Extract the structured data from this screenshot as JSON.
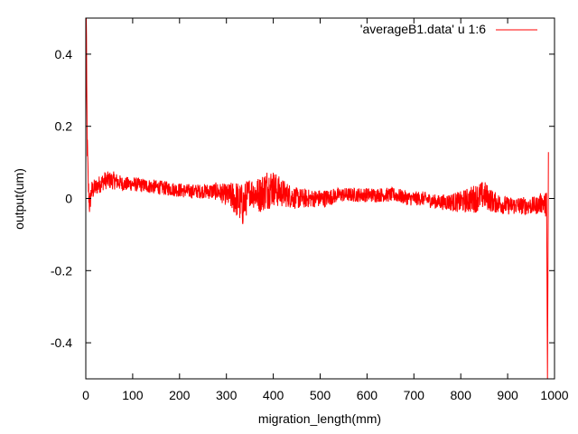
{
  "chart_data": {
    "type": "line",
    "title": "",
    "xlabel": "migration_length(mm)",
    "ylabel": "output(um)",
    "xlim": [
      0,
      1000
    ],
    "ylim": [
      -0.5,
      0.5
    ],
    "xticks": [
      0,
      100,
      200,
      300,
      400,
      500,
      600,
      700,
      800,
      900,
      1000
    ],
    "xtick_labels": [
      "0",
      "100",
      "200",
      "300",
      "400",
      "500",
      "600",
      "700",
      "800",
      "900",
      "1000"
    ],
    "yticks": [
      -0.4,
      -0.2,
      0,
      0.2,
      0.4
    ],
    "ytick_labels": [
      "-0.4",
      "-0.2",
      "0",
      "0.2",
      "0.4"
    ],
    "grid": false,
    "legend": "top-right",
    "series": [
      {
        "name": "'averageB1.data' u 1:6",
        "color": "#ff0000",
        "description_points": {
          "x": [
            0,
            1,
            2,
            3,
            4,
            5,
            8,
            12,
            20,
            40,
            60,
            80,
            100,
            130,
            160,
            190,
            220,
            250,
            280,
            300,
            320,
            335,
            350,
            370,
            390,
            400,
            410,
            430,
            450,
            480,
            510,
            540,
            570,
            600,
            630,
            660,
            690,
            720,
            750,
            780,
            800,
            830,
            850,
            870,
            900,
            930,
            960,
            975,
            980,
            983,
            985,
            987
          ],
          "y": [
            0.2,
            0.5,
            0.3,
            0.15,
            0.1,
            0.04,
            -0.02,
            0.02,
            0.03,
            0.05,
            0.05,
            0.04,
            0.04,
            0.035,
            0.03,
            0.025,
            0.02,
            0.02,
            0.02,
            0.01,
            0.0,
            -0.02,
            0.02,
            0.01,
            0.03,
            0.03,
            0.02,
            0.01,
            0.0,
            0.0,
            0.0,
            0.01,
            0.01,
            0.01,
            0.01,
            0.01,
            0.0,
            0.0,
            -0.01,
            -0.01,
            -0.01,
            0.0,
            0.01,
            -0.01,
            -0.02,
            -0.02,
            -0.02,
            -0.01,
            -0.02,
            0.0,
            -0.5,
            0.1
          ],
          "amplitude": [
            0.05,
            0.05,
            0.05,
            0.05,
            0.05,
            0.04,
            0.03,
            0.03,
            0.025,
            0.025,
            0.025,
            0.02,
            0.02,
            0.02,
            0.02,
            0.02,
            0.02,
            0.02,
            0.025,
            0.03,
            0.05,
            0.06,
            0.04,
            0.05,
            0.06,
            0.05,
            0.045,
            0.035,
            0.03,
            0.025,
            0.025,
            0.02,
            0.02,
            0.02,
            0.02,
            0.02,
            0.02,
            0.02,
            0.02,
            0.025,
            0.03,
            0.04,
            0.04,
            0.03,
            0.025,
            0.025,
            0.025,
            0.03,
            0.03,
            0.05,
            0.0,
            0.05
          ]
        }
      }
    ]
  }
}
